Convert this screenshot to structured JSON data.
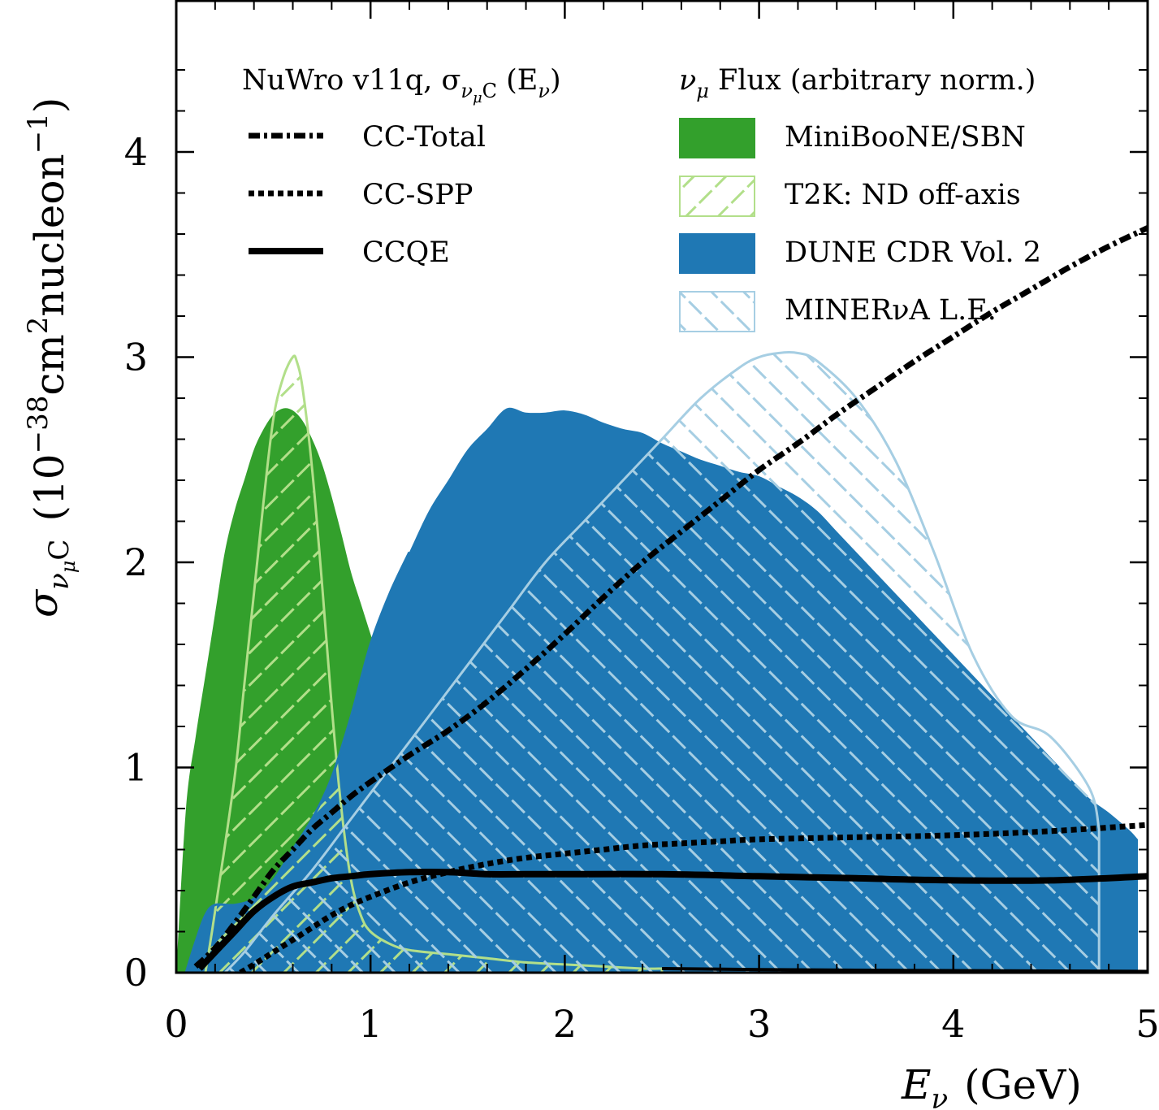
{
  "chart_data": {
    "type": "line",
    "xlabel": {
      "main": "E",
      "sub": "ν",
      "unit": "(GeV)"
    },
    "ylabel": {
      "main": "σ",
      "sub": "ν",
      "subsub": "μ",
      "after": "C",
      "unit_pre": "(10",
      "exp1": "−38",
      "unit_mid": "cm",
      "exp2": "2",
      "unit_post": "nucleon",
      "exp3": "−1",
      "close": ")"
    },
    "xlim": [
      0,
      5
    ],
    "ylim": [
      0,
      4.75
    ],
    "xticks": [
      "0",
      "1",
      "2",
      "3",
      "4",
      "5"
    ],
    "yticks": [
      "0",
      "1",
      "2",
      "3",
      "4"
    ],
    "legend_left": {
      "title": {
        "pre": "NuWro v11q, σ",
        "sub": "ν",
        "subsub": "μ",
        "subc": "C",
        "post": " (E",
        "post_sub": "ν",
        "close": ")"
      },
      "entries": [
        {
          "label": "CC-Total",
          "style": "dashdot"
        },
        {
          "label": "CC-SPP",
          "style": "dotted"
        },
        {
          "label": "CCQE",
          "style": "solid"
        }
      ]
    },
    "legend_right": {
      "title": {
        "pre": "ν",
        "sub": "μ",
        "post": " Flux (arbitrary norm.)"
      },
      "entries": [
        {
          "label": "MiniBooNE/SBN",
          "style": "fill",
          "color": "#33a02c"
        },
        {
          "label": "T2K: ND off-axis",
          "style": "hatch",
          "color": "#b2df8a"
        },
        {
          "label": "DUNE CDR Vol. 2",
          "style": "fill",
          "color": "#1f78b4"
        },
        {
          "label": "MINERνA L.E.",
          "style": "hatch",
          "color": "#a6cee3"
        }
      ]
    },
    "flux_series": [
      {
        "name": "MiniBooNE/SBN",
        "kind": "fill",
        "color": "#33a02c",
        "x": [
          0.0,
          0.05,
          0.1,
          0.15,
          0.2,
          0.25,
          0.3,
          0.35,
          0.4,
          0.45,
          0.5,
          0.55,
          0.6,
          0.65,
          0.7,
          0.75,
          0.8,
          0.85,
          0.9,
          0.95,
          1.0,
          1.05,
          1.1,
          1.15,
          1.2,
          1.3,
          1.4,
          1.5,
          1.6,
          1.7,
          1.8,
          1.9,
          2.0,
          2.1,
          2.2,
          2.3,
          2.4,
          2.5
        ],
        "y": [
          0.0,
          0.8,
          1.15,
          1.45,
          1.75,
          2.05,
          2.25,
          2.4,
          2.55,
          2.65,
          2.72,
          2.75,
          2.74,
          2.69,
          2.6,
          2.48,
          2.32,
          2.14,
          1.95,
          1.8,
          1.65,
          1.5,
          1.35,
          1.2,
          1.07,
          0.85,
          0.65,
          0.48,
          0.33,
          0.24,
          0.17,
          0.12,
          0.09,
          0.07,
          0.05,
          0.04,
          0.03,
          0.02
        ]
      },
      {
        "name": "DUNE CDR Vol. 2",
        "kind": "fill",
        "color": "#1f78b4",
        "x": [
          0.05,
          0.1,
          0.15,
          0.2,
          0.3,
          0.4,
          0.5,
          0.6,
          0.7,
          0.8,
          0.9,
          1.0,
          1.1,
          1.2,
          1.3,
          1.4,
          1.5,
          1.6,
          1.7,
          1.8,
          1.9,
          2.0,
          2.1,
          2.2,
          2.3,
          2.4,
          2.5,
          2.6,
          2.7,
          2.8,
          2.9,
          3.0,
          3.1,
          3.2,
          3.3,
          3.4,
          3.5,
          3.6,
          3.7,
          3.8,
          3.9,
          4.0,
          4.1,
          4.2,
          4.3,
          4.4,
          4.5,
          4.6,
          4.7,
          4.8,
          4.9,
          4.95
        ],
        "y": [
          0.0,
          0.15,
          0.28,
          0.33,
          0.33,
          0.36,
          0.45,
          0.6,
          0.75,
          0.95,
          1.25,
          1.6,
          1.85,
          2.05,
          2.25,
          2.4,
          2.55,
          2.65,
          2.75,
          2.73,
          2.73,
          2.74,
          2.72,
          2.68,
          2.65,
          2.63,
          2.58,
          2.54,
          2.5,
          2.47,
          2.44,
          2.42,
          2.37,
          2.32,
          2.25,
          2.15,
          2.05,
          1.95,
          1.85,
          1.75,
          1.65,
          1.55,
          1.45,
          1.35,
          1.25,
          1.15,
          1.05,
          0.95,
          0.85,
          0.78,
          0.7,
          0.65
        ]
      },
      {
        "name": "T2K: ND off-axis",
        "kind": "hatch",
        "color": "#b2df8a",
        "hatch": "forward",
        "x": [
          0.15,
          0.2,
          0.3,
          0.35,
          0.4,
          0.45,
          0.5,
          0.55,
          0.6,
          0.62,
          0.65,
          0.7,
          0.75,
          0.8,
          0.85,
          0.9,
          0.95,
          1.0,
          1.1,
          1.2,
          1.4,
          1.6,
          1.8,
          2.0,
          2.2,
          2.4,
          2.5
        ],
        "y": [
          0.0,
          0.3,
          0.95,
          1.4,
          1.85,
          2.3,
          2.7,
          2.9,
          3.0,
          2.98,
          2.85,
          2.45,
          1.9,
          1.3,
          0.8,
          0.45,
          0.28,
          0.2,
          0.14,
          0.11,
          0.09,
          0.07,
          0.05,
          0.04,
          0.03,
          0.02,
          0.02
        ]
      },
      {
        "name": "MINERνA L.E.",
        "kind": "hatch",
        "color": "#a6cee3",
        "hatch": "backward",
        "x": [
          0.25,
          0.35,
          0.5,
          0.7,
          0.9,
          1.1,
          1.3,
          1.5,
          1.7,
          1.9,
          2.1,
          2.3,
          2.5,
          2.7,
          2.9,
          3.0,
          3.1,
          3.2,
          3.3,
          3.5,
          3.7,
          3.9,
          4.1,
          4.3,
          4.5,
          4.7,
          4.75
        ],
        "y": [
          0.0,
          0.1,
          0.28,
          0.5,
          0.75,
          1.0,
          1.25,
          1.5,
          1.75,
          2.0,
          2.2,
          2.4,
          2.6,
          2.8,
          2.95,
          3.0,
          3.02,
          3.02,
          2.98,
          2.8,
          2.5,
          2.05,
          1.55,
          1.25,
          1.15,
          0.9,
          0.7
        ]
      }
    ],
    "xsec_series": [
      {
        "name": "CC-Total",
        "style": "dashdot",
        "x": [
          0.1,
          0.2,
          0.3,
          0.4,
          0.5,
          0.6,
          0.7,
          0.8,
          0.9,
          1.0,
          1.2,
          1.4,
          1.6,
          1.8,
          2.0,
          2.2,
          2.4,
          2.6,
          2.8,
          3.0,
          3.2,
          3.4,
          3.6,
          3.8,
          4.0,
          4.2,
          4.4,
          4.6,
          4.8,
          5.0
        ],
        "y": [
          0.03,
          0.12,
          0.24,
          0.37,
          0.5,
          0.6,
          0.7,
          0.78,
          0.86,
          0.93,
          1.06,
          1.18,
          1.32,
          1.48,
          1.65,
          1.83,
          2.0,
          2.15,
          2.3,
          2.45,
          2.58,
          2.72,
          2.85,
          2.98,
          3.1,
          3.22,
          3.33,
          3.44,
          3.54,
          3.63
        ]
      },
      {
        "name": "CC-SPP",
        "style": "dotted",
        "x": [
          0.33,
          0.4,
          0.5,
          0.6,
          0.7,
          0.8,
          0.9,
          1.0,
          1.2,
          1.4,
          1.6,
          1.8,
          2.0,
          2.2,
          2.4,
          2.6,
          2.8,
          3.0,
          3.5,
          4.0,
          4.5,
          5.0
        ],
        "y": [
          0.0,
          0.04,
          0.1,
          0.16,
          0.22,
          0.28,
          0.33,
          0.37,
          0.44,
          0.49,
          0.53,
          0.56,
          0.58,
          0.6,
          0.62,
          0.63,
          0.64,
          0.65,
          0.66,
          0.67,
          0.69,
          0.72
        ]
      },
      {
        "name": "CCQE",
        "style": "solid",
        "x": [
          0.12,
          0.2,
          0.3,
          0.4,
          0.5,
          0.6,
          0.7,
          0.8,
          0.9,
          1.0,
          1.2,
          1.4,
          1.6,
          1.8,
          2.0,
          2.5,
          3.0,
          3.5,
          4.0,
          4.5,
          5.0
        ],
        "y": [
          0.02,
          0.1,
          0.2,
          0.3,
          0.37,
          0.42,
          0.44,
          0.46,
          0.47,
          0.48,
          0.49,
          0.49,
          0.48,
          0.48,
          0.48,
          0.48,
          0.47,
          0.46,
          0.45,
          0.45,
          0.47
        ]
      },
      {
        "name": "CCQE-low",
        "style": "solid-thin",
        "x": [
          2.5,
          3.0,
          3.5,
          4.0,
          4.5,
          5.0
        ],
        "y": [
          0.02,
          0.015,
          0.012,
          0.01,
          0.008,
          0.006
        ]
      }
    ]
  }
}
